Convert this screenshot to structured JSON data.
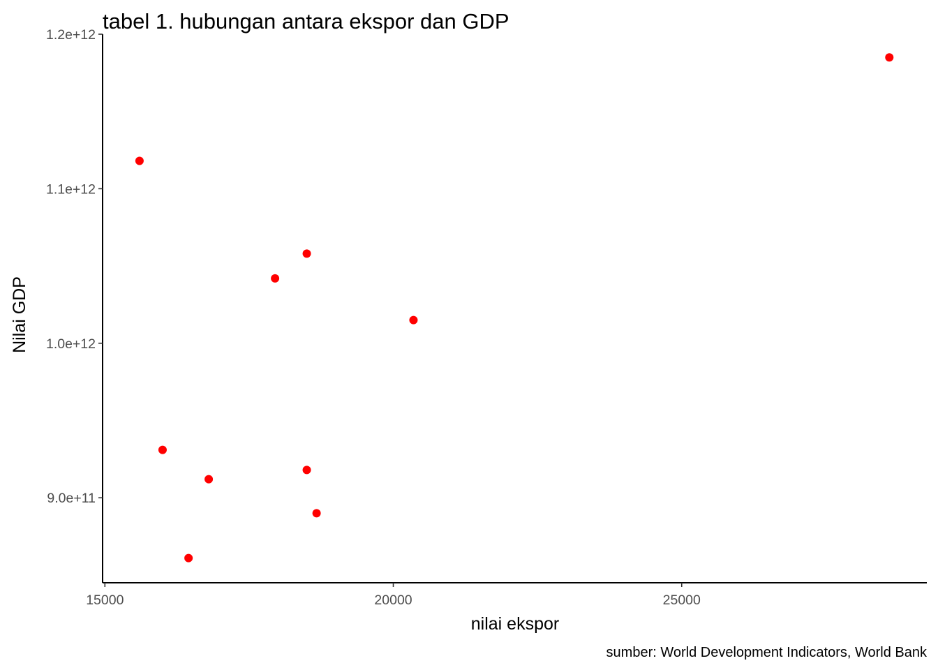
{
  "chart_data": {
    "type": "scatter",
    "title": "tabel 1. hubungan antara ekspor dan GDP",
    "xlabel": "nilai ekspor",
    "ylabel": "Nilai GDP",
    "caption": "sumber: World Development Indicators, World Bank",
    "xlim": [
      14960,
      29250
    ],
    "ylim": [
      845000000000.0,
      1200000000000.0
    ],
    "x_ticks": [
      15000,
      20000,
      25000
    ],
    "x_tick_labels": [
      "15000",
      "20000",
      "25000"
    ],
    "y_ticks": [
      900000000000.0,
      1000000000000.0,
      1100000000000.0,
      1200000000000.0
    ],
    "y_tick_labels": [
      "9.0e+11",
      "1.0e+12",
      "1.1e+12",
      "1.2e+12"
    ],
    "grid": false,
    "point_color": "#ff0000",
    "axis_color": "#000000",
    "points": [
      {
        "x": 15600,
        "y": 1118000000000.0
      },
      {
        "x": 16000,
        "y": 931000000000.0
      },
      {
        "x": 16450,
        "y": 861000000000.0
      },
      {
        "x": 16800,
        "y": 912000000000.0
      },
      {
        "x": 17950,
        "y": 1042000000000.0
      },
      {
        "x": 18500,
        "y": 1058000000000.0
      },
      {
        "x": 18500,
        "y": 918000000000.0
      },
      {
        "x": 18670,
        "y": 890000000000.0
      },
      {
        "x": 20350,
        "y": 1015000000000.0
      },
      {
        "x": 28600,
        "y": 1185000000000.0
      }
    ]
  }
}
